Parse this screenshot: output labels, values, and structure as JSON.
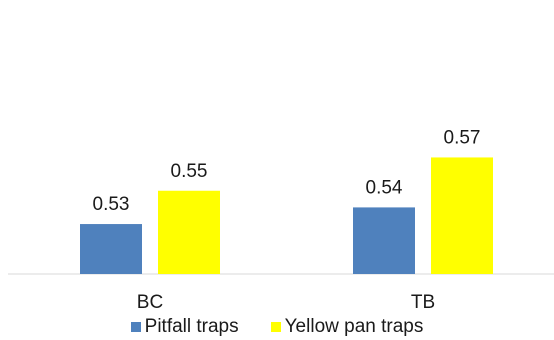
{
  "chart_data": {
    "type": "bar",
    "categories": [
      "BC",
      "TB"
    ],
    "series": [
      {
        "name": "Pitfall traps",
        "values": [
          0.53,
          0.54
        ],
        "color": "#4f81bd"
      },
      {
        "name": "Yellow pan traps",
        "values": [
          0.55,
          0.57
        ],
        "color": "#ffff00"
      }
    ],
    "title": "",
    "xlabel": "",
    "ylabel": "",
    "ylim": [
      0.5,
      0.58
    ],
    "grid": false,
    "legend_position": "bottom"
  }
}
